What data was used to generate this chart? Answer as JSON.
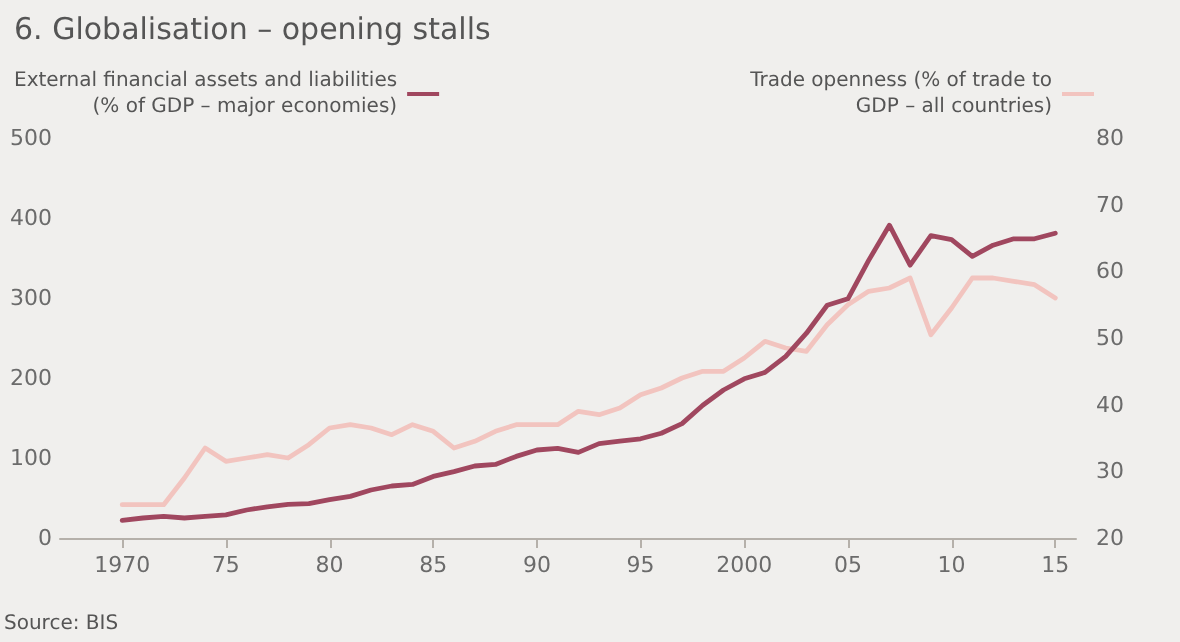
{
  "chart_data": {
    "type": "line",
    "title": "6. Globalisation – opening stalls",
    "x": [
      1970,
      1971,
      1972,
      1973,
      1974,
      1975,
      1976,
      1977,
      1978,
      1979,
      1980,
      1981,
      1982,
      1983,
      1984,
      1985,
      1986,
      1987,
      1988,
      1989,
      1990,
      1991,
      1992,
      1993,
      1994,
      1995,
      1996,
      1997,
      1998,
      1999,
      2000,
      2001,
      2002,
      2003,
      2004,
      2005,
      2006,
      2007,
      2008,
      2009,
      2010,
      2011,
      2012,
      2013,
      2014,
      2015
    ],
    "series": [
      {
        "name": "External financial assets and liabilities\n(% of GDP – major economies)",
        "color": "#a0475f",
        "values": [
          22,
          25,
          27,
          25,
          27,
          29,
          35,
          39,
          42,
          43,
          48,
          52,
          60,
          65,
          67,
          77,
          83,
          90,
          92,
          102,
          110,
          112,
          107,
          118,
          121,
          124,
          131,
          143,
          166,
          185,
          199,
          207,
          227,
          256,
          291,
          299,
          347,
          391,
          341,
          378,
          373,
          352,
          366,
          374,
          374,
          381
        ]
      },
      {
        "name": "Trade openness (% of trade to\nGDP – all countries)",
        "color": "#f2c4bf",
        "axis": "y2",
        "values": [
          25,
          25,
          25,
          29,
          33.5,
          31.5,
          32,
          32.5,
          32,
          34,
          36.5,
          37,
          36.5,
          35.5,
          37,
          36,
          33.5,
          34.5,
          36,
          37,
          37,
          37,
          39,
          38.5,
          39.5,
          41.5,
          42.5,
          44,
          45,
          45,
          47,
          49.5,
          48.5,
          48,
          52,
          55,
          57,
          57.5,
          59,
          50.5,
          54.5,
          59,
          59,
          58.5,
          58,
          56
        ]
      }
    ],
    "xlim": [
      1967,
      2016
    ],
    "xticks": [
      {
        "value": 1970,
        "label": "1970"
      },
      {
        "value": 1975,
        "label": "75"
      },
      {
        "value": 1980,
        "label": "80"
      },
      {
        "value": 1985,
        "label": "85"
      },
      {
        "value": 1990,
        "label": "90"
      },
      {
        "value": 1995,
        "label": "95"
      },
      {
        "value": 2000,
        "label": "2000"
      },
      {
        "value": 2005,
        "label": "05"
      },
      {
        "value": 2010,
        "label": "10"
      },
      {
        "value": 2015,
        "label": "15"
      }
    ],
    "ylim": [
      0,
      500
    ],
    "yticks": [
      0,
      100,
      200,
      300,
      400,
      500
    ],
    "y2lim": [
      20,
      80
    ],
    "y2ticks": [
      20,
      30,
      40,
      50,
      60,
      70,
      80
    ],
    "grid": false,
    "legend": "top",
    "marker": "none",
    "line_style": "solid",
    "annotations": [
      "Source: BIS"
    ]
  }
}
